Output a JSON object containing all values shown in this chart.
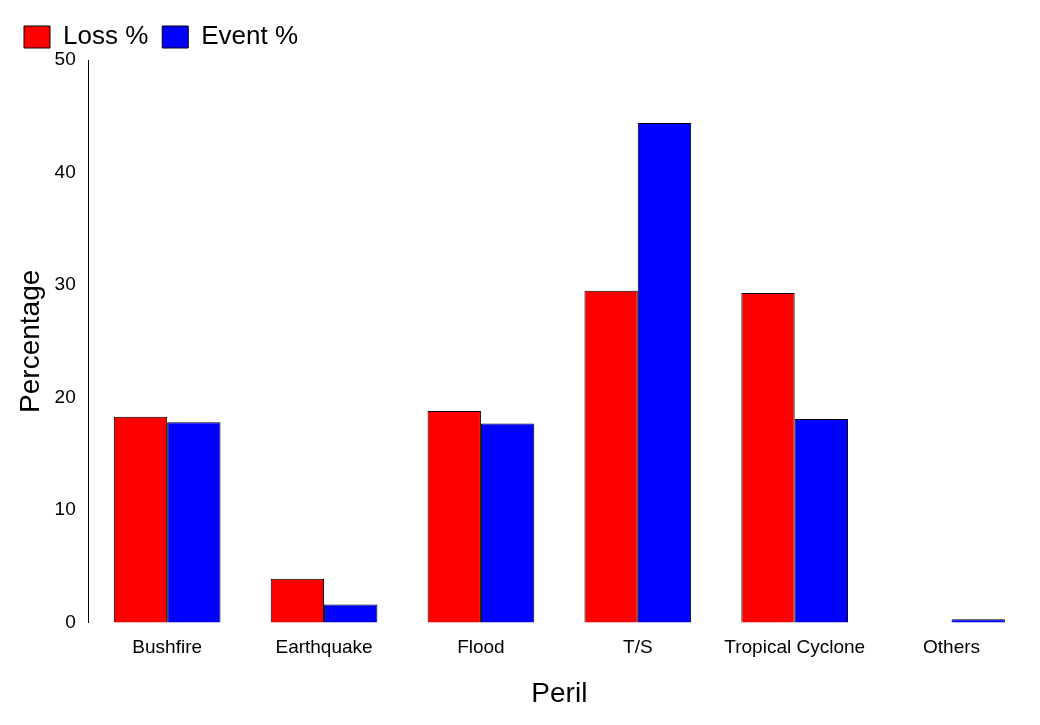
{
  "chart_data": {
    "type": "bar",
    "xlabel": "Peril",
    "ylabel": "Percentage",
    "categories": [
      "Bushfire",
      "Earthquake",
      "Flood",
      "T/S",
      "Tropical Cyclone",
      "Others"
    ],
    "series": [
      {
        "name": "Loss %",
        "color": "#ff0000",
        "values": [
          18.3,
          3.9,
          18.8,
          29.5,
          29.3,
          0
        ]
      },
      {
        "name": "Event %",
        "color": "#0000ff",
        "values": [
          17.8,
          1.6,
          17.7,
          44.4,
          18.1,
          0.3
        ]
      }
    ],
    "ylim": [
      0,
      50
    ],
    "yticks": [
      0,
      10,
      20,
      30,
      40,
      50
    ],
    "grid": false,
    "legend": "top left"
  }
}
